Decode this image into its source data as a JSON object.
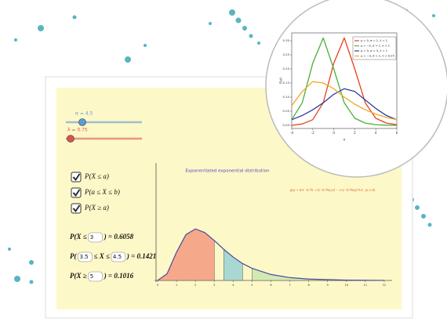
{
  "app": {
    "sliders": [
      {
        "label": "α = 4.5",
        "color": "#5b9bd5"
      },
      {
        "label": "λ = 0.75",
        "color": "#d9534f"
      }
    ],
    "checkboxes": [
      "P(X ≤ a)",
      "P(a ≤ X ≤ b)",
      "P(X ≥ a)"
    ],
    "probabilities": [
      {
        "before": "P(X ≤",
        "inputs": [
          3
        ],
        "after": ") = 0.6058"
      },
      {
        "before": "P(",
        "inputs": [
          3.5,
          4.5
        ],
        "between": "≤ X ≤",
        "after": ") = 0.1421"
      },
      {
        "before": "P(X ≥",
        "inputs": [
          5
        ],
        "after": ") = 0.1016"
      }
    ]
  },
  "chart_data": [
    {
      "type": "area",
      "title": "Exponentiated exponential distribution",
      "annotation": "f(x) = 4.5 · 0.75 · e^(−0.75x) (1 − e^(−0.75x))^3.5 ,   (x ≥ 0)",
      "x": [
        0,
        0.5,
        1,
        1.5,
        2,
        2.5,
        3,
        3.5,
        4,
        4.5,
        5,
        6,
        7,
        8,
        10,
        12
      ],
      "values": [
        0,
        0.04,
        0.17,
        0.277,
        0.311,
        0.289,
        0.241,
        0.188,
        0.141,
        0.102,
        0.073,
        0.036,
        0.017,
        0.0084,
        0.0019,
        0.0004
      ],
      "color": "#4a4aa0",
      "region_colors": [
        "#f6a98a",
        "#a9d8d2",
        "#d3e9b4"
      ],
      "xlim": [
        0,
        12.5
      ],
      "ylim": [
        0,
        0.7
      ],
      "xticks": [
        0,
        1,
        2,
        3,
        4,
        5,
        6,
        7,
        8,
        9,
        10,
        11,
        12
      ]
    },
    {
      "type": "line",
      "ylabel": "f(x)",
      "xlabel": "x",
      "x": [
        -4,
        -3,
        -2,
        -1,
        0,
        1,
        2,
        3,
        4,
        5,
        6
      ],
      "series": [
        {
          "name": "μ = 0, σ = 1, λ = 1",
          "color": "#e8401c",
          "values": [
            0.0,
            0.005,
            0.02,
            0.08,
            0.22,
            0.31,
            0.2,
            0.08,
            0.025,
            0.008,
            0.002
          ]
        },
        {
          "name": "μ = −2, σ = 1, λ = 1",
          "color": "#4caf3a",
          "values": [
            0.02,
            0.08,
            0.22,
            0.31,
            0.2,
            0.08,
            0.025,
            0.008,
            0.002,
            0.0005,
            0
          ]
        },
        {
          "name": "μ = 0, σ = 3, λ = 1",
          "color": "#2d3e9c",
          "values": [
            0.02,
            0.035,
            0.055,
            0.08,
            0.11,
            0.13,
            0.12,
            0.09,
            0.06,
            0.035,
            0.02
          ]
        },
        {
          "name": "μ = −3, σ = 1, λ = 0.25",
          "color": "#f5a623",
          "values": [
            0.07,
            0.12,
            0.155,
            0.15,
            0.13,
            0.1,
            0.075,
            0.055,
            0.04,
            0.028,
            0.02
          ]
        }
      ],
      "xlim": [
        -4,
        6
      ],
      "ylim": [
        0,
        0.32
      ],
      "xticks": [
        -4,
        -2,
        0,
        2,
        4,
        6
      ],
      "yticks": [
        {
          "value": 0,
          "label": "0.00"
        },
        {
          "value": 0.05,
          "label": "0.05"
        },
        {
          "value": 0.1,
          "label": "0.10"
        },
        {
          "value": 0.15,
          "label": "0.15"
        },
        {
          "value": 0.2,
          "label": "0.20"
        },
        {
          "value": 0.25,
          "label": "0.25"
        },
        {
          "value": 0.3,
          "label": "0.30"
        }
      ]
    }
  ]
}
